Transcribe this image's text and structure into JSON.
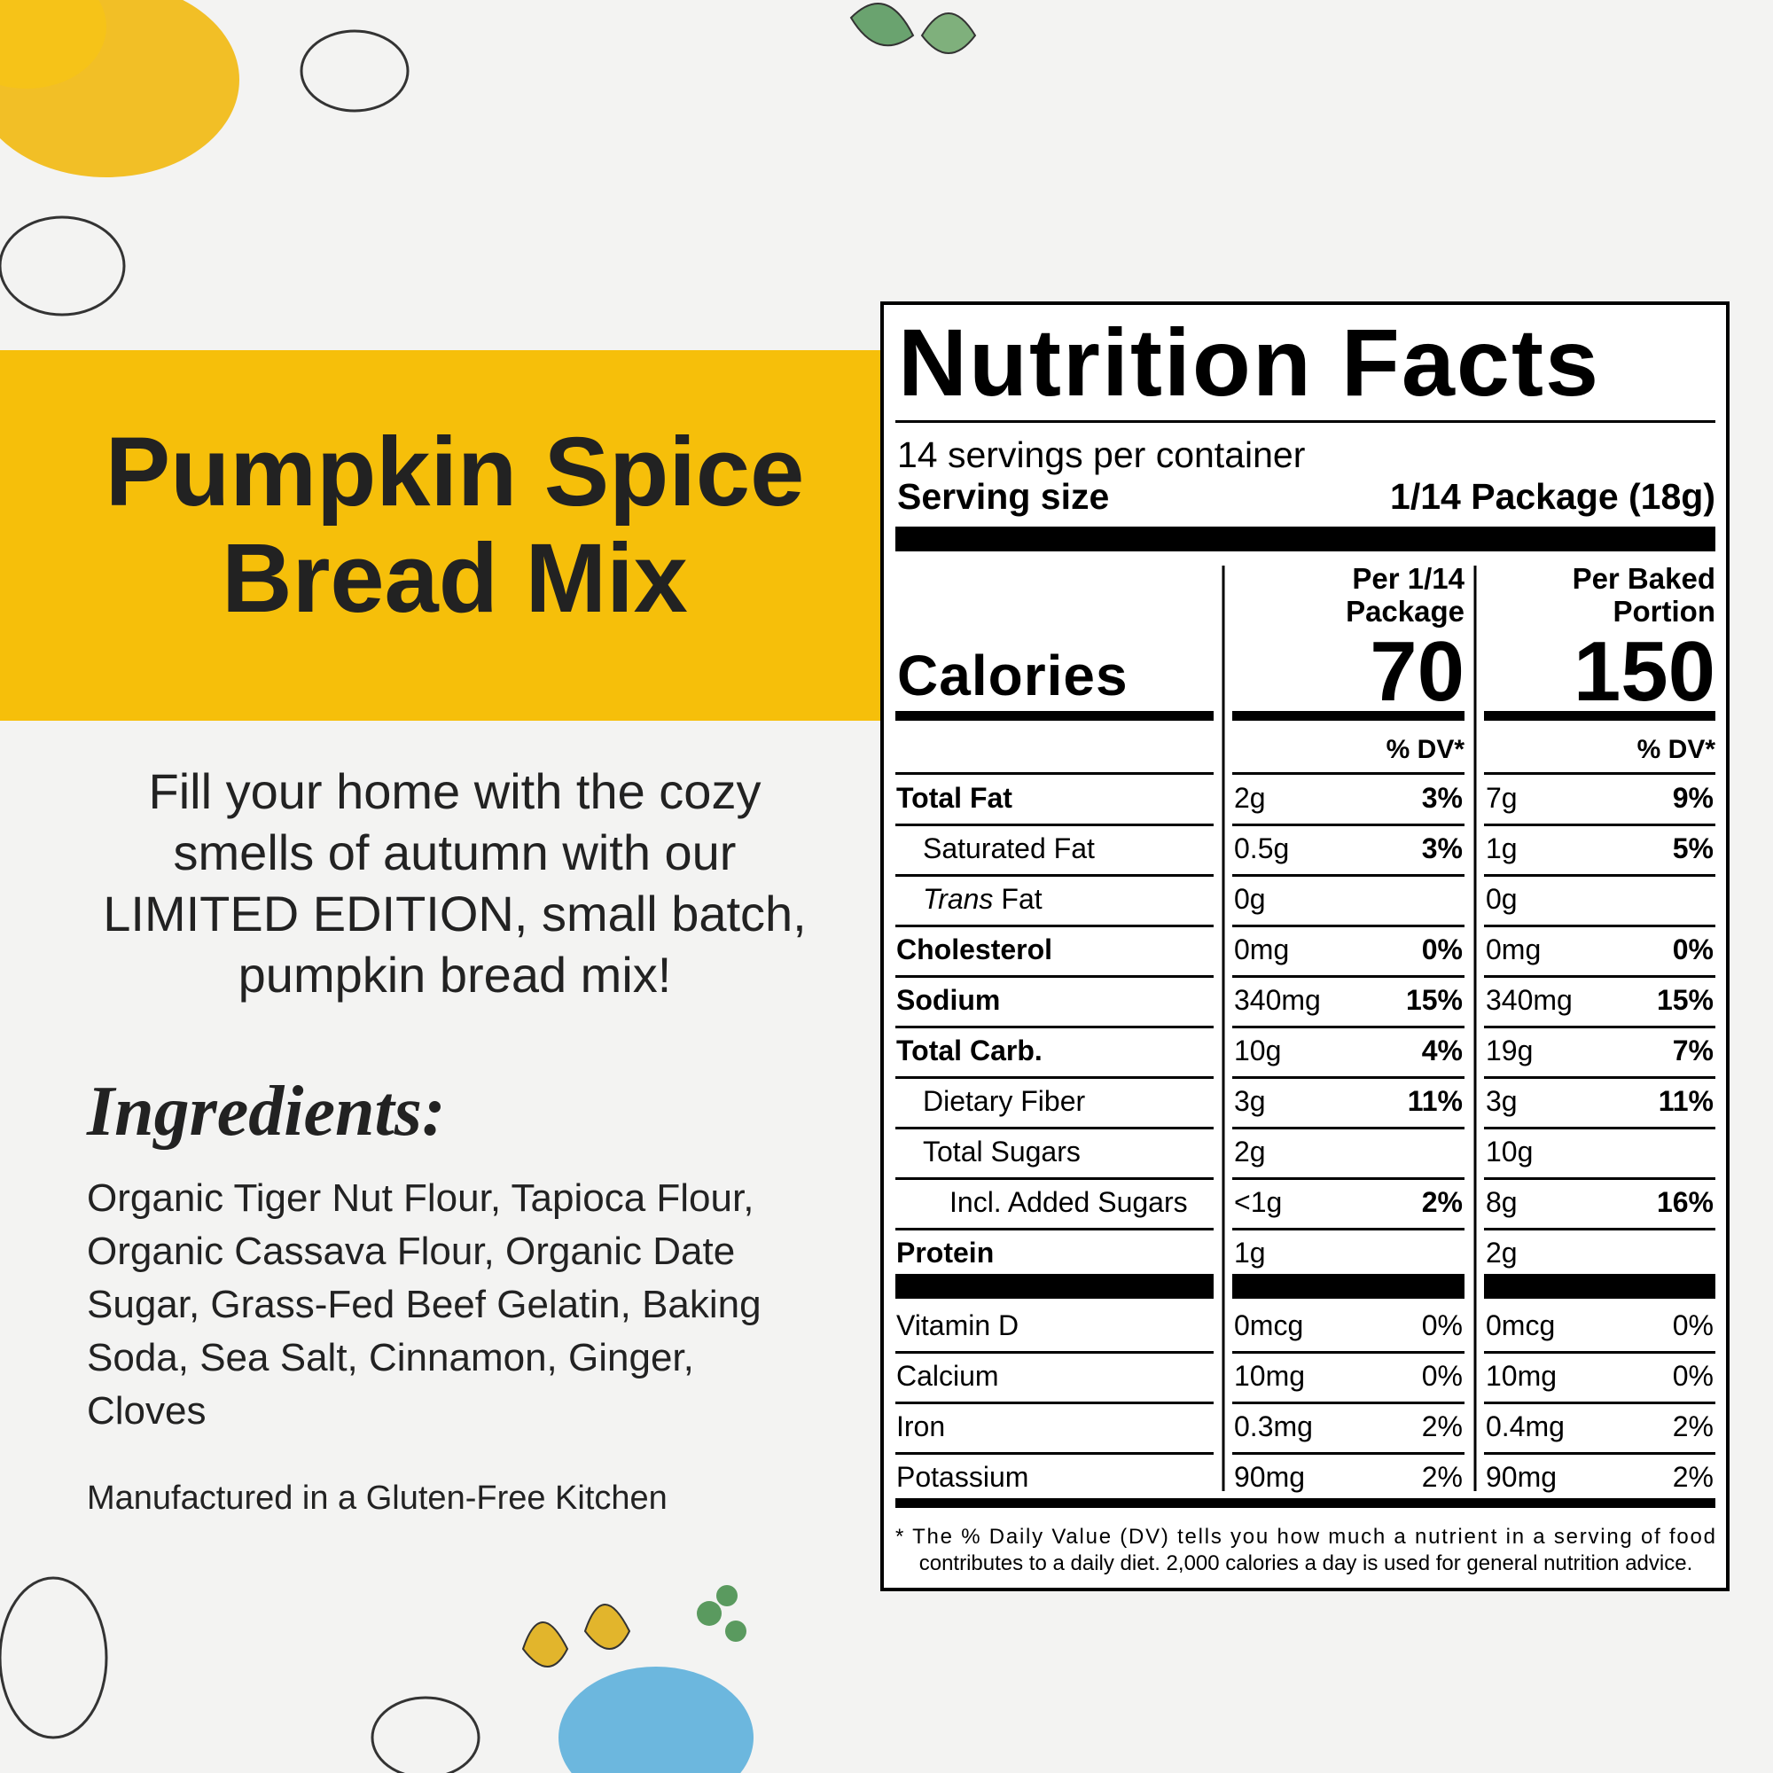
{
  "product": {
    "title": [
      "Pumpkin Spice",
      "Bread Mix"
    ],
    "description": [
      "Fill your home with the cozy",
      "smells of autumn with our",
      "LIMITED EDITION, small batch,",
      "pumpkin bread mix!"
    ],
    "ingredients_heading": "Ingredients:",
    "ingredients": [
      "Organic Tiger Nut Flour, Tapioca Flour,",
      "Organic Cassava Flour, Organic Date",
      "Sugar, Grass-Fed Beef Gelatin, Baking",
      "Soda, Sea Salt, Cinnamon, Ginger,",
      "Cloves"
    ],
    "note": "Manufactured in a Gluten-Free Kitchen"
  },
  "label": {
    "title": "Nutrition Facts",
    "servings": "14 servings per container",
    "serving_size_label": "Serving size",
    "serving_size": "1/14 Package (18g)",
    "calories_label": "Calories",
    "columns": [
      {
        "header": [
          "Per 1/14",
          "Package"
        ],
        "calories": 70,
        "dv_header": "% DV*"
      },
      {
        "header": [
          "Per Baked",
          "Portion"
        ],
        "calories": 150,
        "dv_header": "% DV*"
      }
    ],
    "nutrients": [
      {
        "name": "Total Fat",
        "amounts": [
          {
            "amount": "2g",
            "dv": "3%"
          },
          {
            "amount": "7g",
            "dv": "9%"
          }
        ]
      },
      {
        "name": "Saturated Fat",
        "amounts": [
          {
            "amount": "0.5g",
            "dv": "3%"
          },
          {
            "amount": "1g",
            "dv": "5%"
          }
        ]
      },
      {
        "name_italic": "Trans",
        "name": "Fat",
        "amounts": [
          {
            "amount": "0g"
          },
          {
            "amount": "0g"
          }
        ]
      },
      {
        "name": "Cholesterol",
        "amounts": [
          {
            "amount": "0mg",
            "dv": "0%"
          },
          {
            "amount": "0mg",
            "dv": "0%"
          }
        ]
      },
      {
        "name": "Sodium",
        "amounts": [
          {
            "amount": "340mg",
            "dv": "15%"
          },
          {
            "amount": "340mg",
            "dv": "15%"
          }
        ]
      },
      {
        "name": "Total Carb.",
        "amounts": [
          {
            "amount": "10g",
            "dv": "4%"
          },
          {
            "amount": "19g",
            "dv": "7%"
          }
        ]
      },
      {
        "name": "Dietary Fiber",
        "amounts": [
          {
            "amount": "3g",
            "dv": "11%"
          },
          {
            "amount": "3g",
            "dv": "11%"
          }
        ]
      },
      {
        "name": "Total Sugars",
        "amounts": [
          {
            "amount": "2g"
          },
          {
            "amount": "10g"
          }
        ]
      },
      {
        "name": "Incl. Added Sugars",
        "amounts": [
          {
            "amount": "<1g",
            "dv": "2%"
          },
          {
            "amount": "8g",
            "dv": "16%"
          }
        ]
      },
      {
        "name": "Protein",
        "amounts": [
          {
            "amount": "1g"
          },
          {
            "amount": "2g"
          }
        ]
      }
    ],
    "vitamins": [
      {
        "name": "Vitamin D",
        "amounts": [
          {
            "amount": "0mcg",
            "dv": "0%"
          },
          {
            "amount": "0mcg",
            "dv": "0%"
          }
        ]
      },
      {
        "name": "Calcium",
        "amounts": [
          {
            "amount": "10mg",
            "dv": "0%"
          },
          {
            "amount": "10mg",
            "dv": "0%"
          }
        ]
      },
      {
        "name": "Iron",
        "amounts": [
          {
            "amount": "0.3mg",
            "dv": "2%"
          },
          {
            "amount": "0.4mg",
            "dv": "2%"
          }
        ]
      },
      {
        "name": "Potassium",
        "amounts": [
          {
            "amount": "90mg",
            "dv": "2%"
          },
          {
            "amount": "90mg",
            "dv": "2%"
          }
        ]
      }
    ],
    "footnote": [
      "* The % Daily Value (DV) tells you how much a nutrient in a serving of food",
      "contributes to a daily diet. 2,000 calories a day is used for general nutrition advice."
    ]
  }
}
